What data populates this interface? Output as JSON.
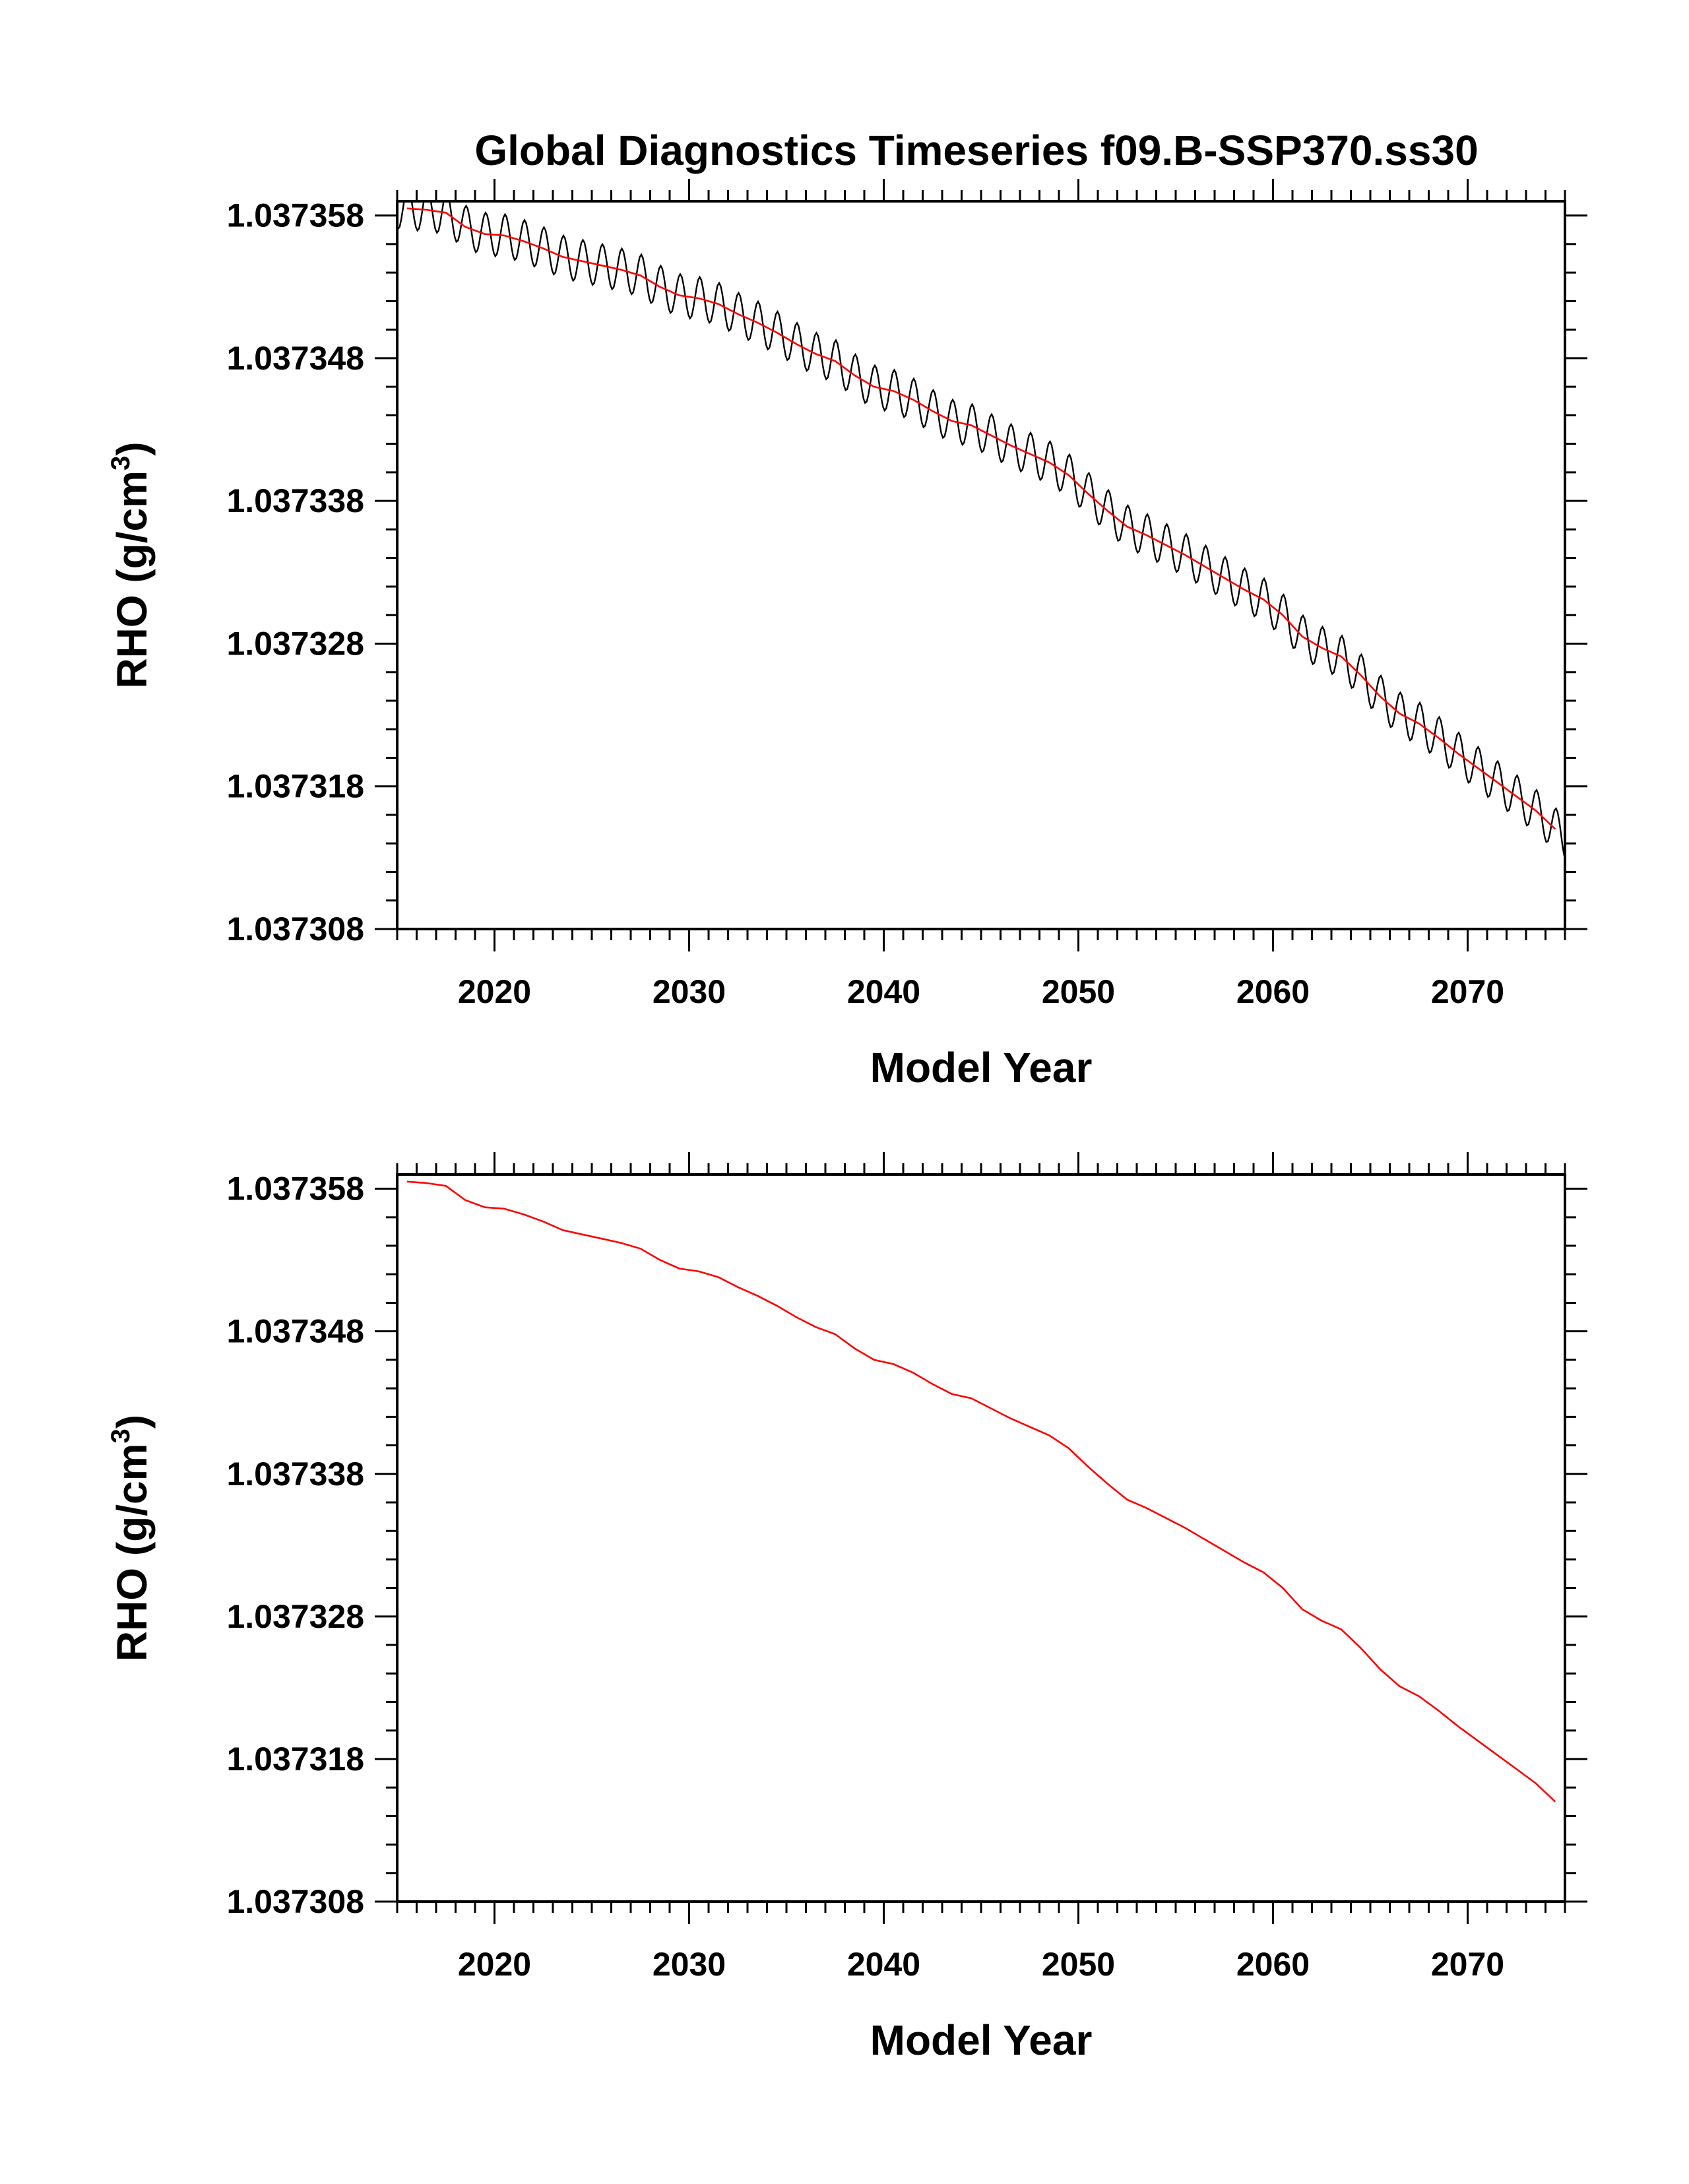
{
  "title": "Global Diagnostics Timeseries f09.B-SSP370.ss30",
  "colors": {
    "monthly": "#000000",
    "annual": "#ff0000",
    "frame": "#000000"
  },
  "chart_data": [
    {
      "type": "line",
      "xlabel": "Model Year",
      "ylabel_main": "RHO (g/cm",
      "ylabel_sup": "3",
      "ylabel_close": ")",
      "xlim": [
        2015,
        2075
      ],
      "ylim": [
        1.037308,
        1.037359
      ],
      "xticks": [
        2020,
        2030,
        2040,
        2050,
        2060,
        2070
      ],
      "xtick_labels": [
        "2020",
        "2030",
        "2040",
        "2050",
        "2060",
        "2070"
      ],
      "yticks": [
        1.037308,
        1.037318,
        1.037328,
        1.037338,
        1.037348,
        1.037358
      ],
      "ytick_labels": [
        "1.037308",
        "1.037318",
        "1.037328",
        "1.037338",
        "1.037348",
        "1.037358"
      ],
      "series": [
        {
          "style": "monthly",
          "seasonal_amplitude": 1.5e-06
        },
        {
          "style": "annual"
        }
      ]
    },
    {
      "type": "line",
      "xlabel": "Model Year",
      "ylabel_main": "RHO (g/cm",
      "ylabel_sup": "3",
      "ylabel_close": ")",
      "xlim": [
        2015,
        2075
      ],
      "ylim": [
        1.037308,
        1.037359
      ],
      "xticks": [
        2020,
        2030,
        2040,
        2050,
        2060,
        2070
      ],
      "xtick_labels": [
        "2020",
        "2030",
        "2040",
        "2050",
        "2060",
        "2070"
      ],
      "yticks": [
        1.037308,
        1.037318,
        1.037328,
        1.037338,
        1.037348,
        1.037358
      ],
      "ytick_labels": [
        "1.037308",
        "1.037318",
        "1.037328",
        "1.037338",
        "1.037348",
        "1.037358"
      ],
      "series": [
        {
          "style": "annual"
        }
      ]
    }
  ],
  "annual_series": {
    "x": [
      2015.5,
      2016.5,
      2017.5,
      2018.5,
      2019.5,
      2020.5,
      2021.5,
      2022.5,
      2023.5,
      2024.5,
      2025.5,
      2026.5,
      2027.5,
      2028.5,
      2029.5,
      2030.5,
      2031.5,
      2032.5,
      2033.5,
      2034.5,
      2035.5,
      2036.5,
      2037.5,
      2038.5,
      2039.5,
      2040.5,
      2041.5,
      2042.5,
      2043.5,
      2044.5,
      2045.5,
      2046.5,
      2047.5,
      2048.5,
      2049.5,
      2050.5,
      2051.5,
      2052.5,
      2053.5,
      2054.5,
      2055.5,
      2056.5,
      2057.5,
      2058.5,
      2059.5,
      2060.5,
      2061.5,
      2062.5,
      2063.5,
      2064.5,
      2065.5,
      2066.5,
      2067.5,
      2068.5,
      2069.5,
      2070.5,
      2071.5,
      2072.5,
      2073.5,
      2074.5
    ],
    "y": [
      1.0373585,
      1.0373584,
      1.0373582,
      1.0373572,
      1.0373567,
      1.0373566,
      1.0373562,
      1.0373557,
      1.0373551,
      1.0373548,
      1.0373545,
      1.0373542,
      1.0373538,
      1.037353,
      1.0373524,
      1.0373522,
      1.0373518,
      1.0373511,
      1.0373505,
      1.0373498,
      1.037349,
      1.0373483,
      1.0373478,
      1.0373468,
      1.037346,
      1.0373457,
      1.0373451,
      1.0373443,
      1.0373436,
      1.0373433,
      1.0373426,
      1.0373419,
      1.0373413,
      1.0373407,
      1.0373398,
      1.0373385,
      1.0373373,
      1.0373362,
      1.0373356,
      1.0373349,
      1.0373342,
      1.0373334,
      1.0373326,
      1.0373318,
      1.0373311,
      1.03733,
      1.0373285,
      1.0373277,
      1.0373271,
      1.0373258,
      1.0373243,
      1.0373231,
      1.0373224,
      1.0373214,
      1.0373203,
      1.0373193,
      1.0373183,
      1.0373173,
      1.0373163,
      1.037315
    ]
  }
}
